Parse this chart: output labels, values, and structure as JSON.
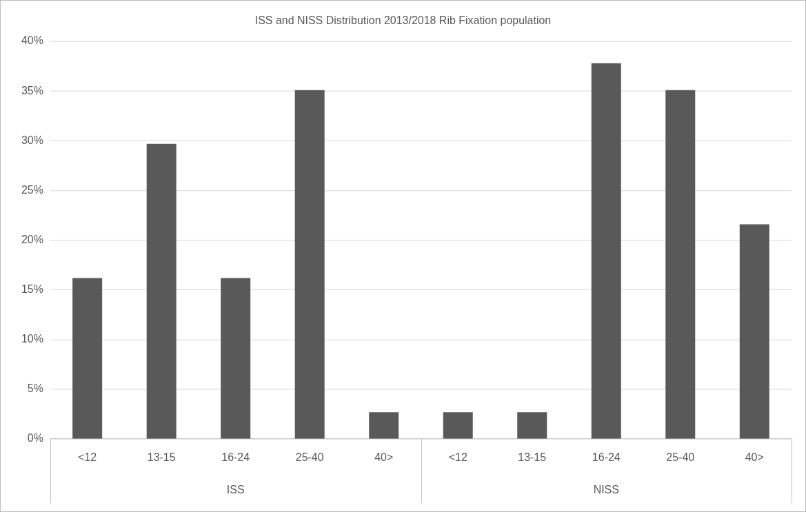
{
  "chart_data": {
    "type": "bar",
    "title": "ISS and NISS Distribution 2013/2018 Rib Fixation population",
    "categories": [
      "<12",
      "13-15",
      "16-24",
      "25-40",
      "40>",
      "<12",
      "13-15",
      "16-24",
      "25-40",
      "40>"
    ],
    "values": [
      16.2,
      29.7,
      16.2,
      35.1,
      2.7,
      2.7,
      2.7,
      37.8,
      35.1,
      21.6
    ],
    "color": "#595959",
    "ylim": [
      0,
      40
    ],
    "yticks": [
      {
        "value": 0,
        "label": "0%"
      },
      {
        "value": 5,
        "label": "5%"
      },
      {
        "value": 10,
        "label": "10%"
      },
      {
        "value": 15,
        "label": "15%"
      },
      {
        "value": 20,
        "label": "20%"
      },
      {
        "value": 25,
        "label": "25%"
      },
      {
        "value": 30,
        "label": "30%"
      },
      {
        "value": 35,
        "label": "35%"
      },
      {
        "value": 40,
        "label": "40%"
      }
    ],
    "grid": "y",
    "annotations": [
      "ISS",
      "NISS"
    ]
  }
}
